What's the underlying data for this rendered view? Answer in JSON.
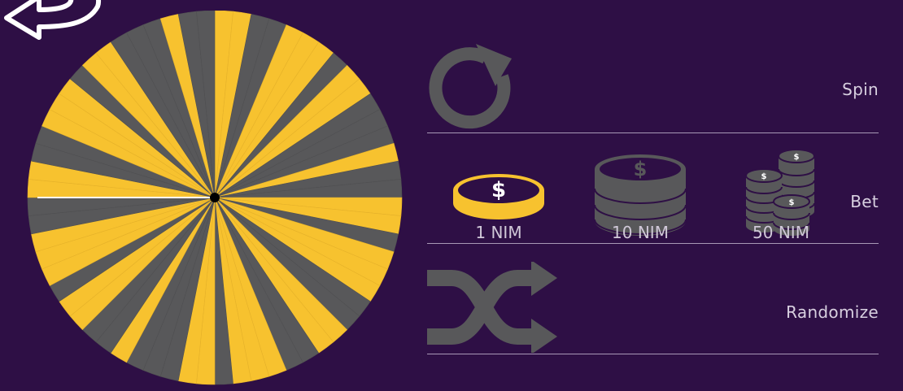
{
  "navigation": {
    "back_icon": "back-arrow-icon"
  },
  "wheel": {
    "segment_count": 64,
    "colors": {
      "yellow": "#f7c22f",
      "gray": "#58585a",
      "pointer": "#ffffff",
      "hub": "#000000"
    }
  },
  "controls": {
    "spin": {
      "label": "Spin",
      "icon": "refresh-icon"
    },
    "bet": {
      "label": "Bet",
      "chips": [
        {
          "label": "1 NIM",
          "icon": "single-coin-icon",
          "selected": true
        },
        {
          "label": "10 NIM",
          "icon": "coin-stack-icon",
          "selected": false
        },
        {
          "label": "50 NIM",
          "icon": "coin-piles-icon",
          "selected": false
        }
      ]
    },
    "randomize": {
      "label": "Randomize",
      "icon": "shuffle-icon"
    }
  },
  "colors": {
    "background": "#2e0f45",
    "accent_yellow": "#f7c22f",
    "icon_gray": "#58585a",
    "divider": "#a898b6"
  }
}
